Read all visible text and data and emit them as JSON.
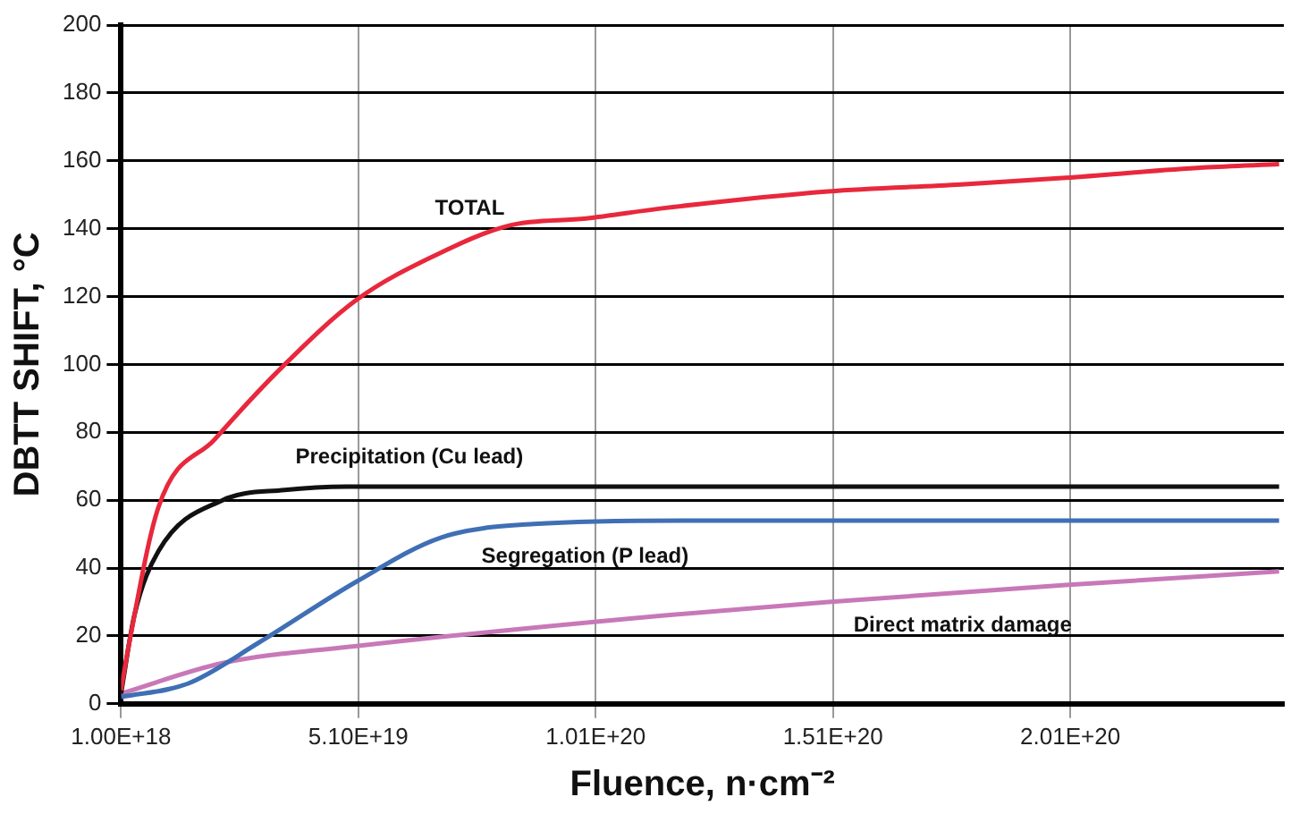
{
  "chart_data": {
    "type": "line",
    "xlabel": "Fluence, n·cm⁻²",
    "ylabel": "DBTT SHIFT, °C",
    "xlim": [
      1e+18,
      2.46e+20
    ],
    "xticks": [
      {
        "value": 1e+18,
        "label": "1.00E+18"
      },
      {
        "value": 5.1e+19,
        "label": "5.10E+19"
      },
      {
        "value": 1.01e+20,
        "label": "1.01E+20"
      },
      {
        "value": 1.51e+20,
        "label": "1.51E+20"
      },
      {
        "value": 2.01e+20,
        "label": "2.01E+20"
      }
    ],
    "ylim": [
      0,
      200
    ],
    "yticks": [
      0,
      20,
      40,
      60,
      80,
      100,
      120,
      140,
      160,
      180,
      200
    ],
    "grid": true,
    "legend": false,
    "marker": "none",
    "line_style": "solid",
    "series": [
      {
        "name": "TOTAL",
        "color": "#e8283c",
        "x": [
          1e+18,
          2.6e+18,
          8.9e+18,
          2.08e+19,
          3.55e+19,
          5.06e+19,
          6.7e+19,
          8.3e+19,
          9.9e+19,
          1.15e+20,
          1.5e+20,
          1.78e+20,
          2e+20,
          2.29e+20,
          2.45e+20
        ],
        "values": [
          4,
          17,
          58,
          78,
          100,
          119,
          132,
          141,
          143,
          146,
          151,
          153,
          155,
          158,
          159
        ]
      },
      {
        "name": "Precipitation (Cu lead)",
        "color": "#111111",
        "x": [
          1e+18,
          3.8e+18,
          8.9e+18,
          2.24e+19,
          3.55e+19,
          4.86e+19,
          1e+20,
          2.45e+20
        ],
        "values": [
          3,
          26,
          45,
          60,
          63,
          64,
          64,
          64
        ]
      },
      {
        "name": "Segregation (P lead)",
        "color": "#3f6fb5",
        "x": [
          1e+18,
          1.52e+19,
          3e+19,
          5.06e+19,
          6.85e+19,
          8.8e+19,
          1.2e+20,
          2.45e+20
        ],
        "values": [
          2,
          6,
          18,
          36,
          49,
          53,
          54,
          54
        ]
      },
      {
        "name": "Direct matrix damage",
        "color": "#c878b8",
        "x": [
          1e+18,
          2.24e+19,
          5.06e+19,
          1.15e+20,
          1.5e+20,
          2e+20,
          2.45e+20
        ],
        "values": [
          3,
          12,
          17,
          26,
          30,
          35,
          39
        ]
      }
    ]
  }
}
